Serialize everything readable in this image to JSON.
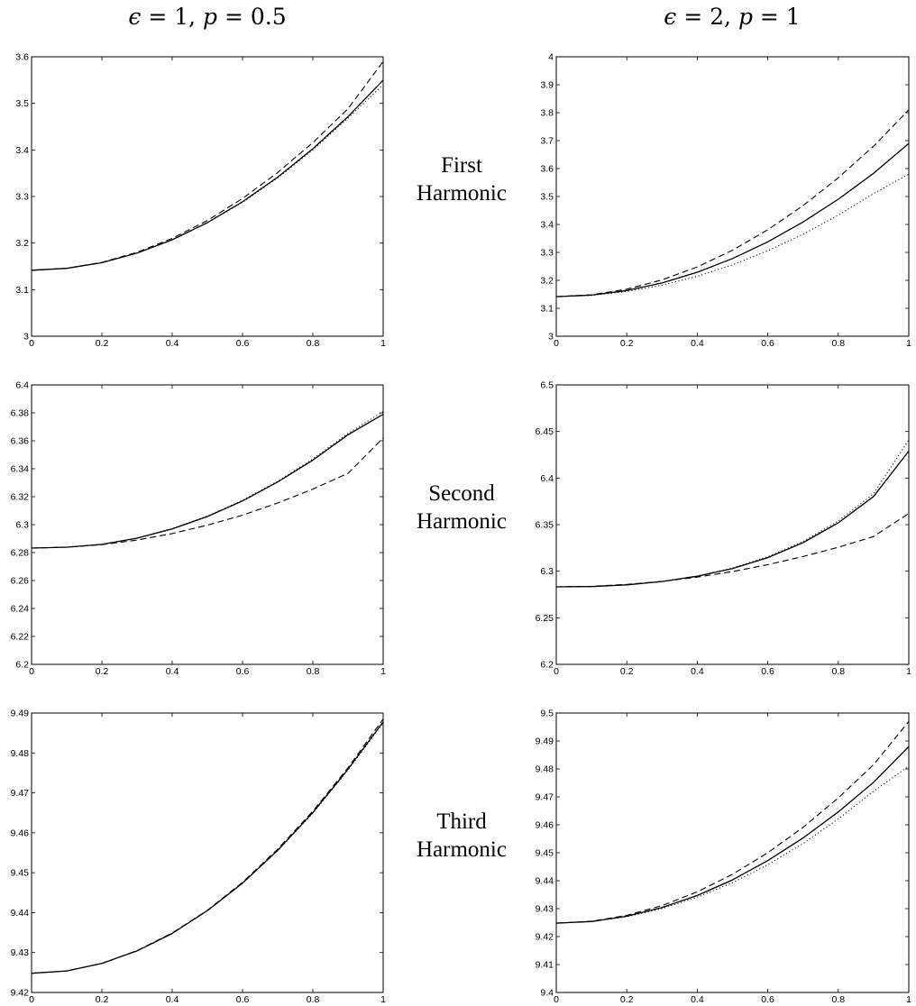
{
  "column_headers": [
    {
      "eps_var": "ϵ",
      "eps_eq": " = 1, ",
      "p_var": "p",
      "p_eq": " = 0.5"
    },
    {
      "eps_var": "ϵ",
      "eps_eq": " = 2, ",
      "p_var": "p",
      "p_eq": " = 1"
    }
  ],
  "row_labels": [
    {
      "line1": "First",
      "line2": "Harmonic"
    },
    {
      "line1": "Second",
      "line2": "Harmonic"
    },
    {
      "line1": "Third",
      "line2": "Harmonic"
    }
  ],
  "chart_data": [
    {
      "type": "line",
      "row": 0,
      "col": 0,
      "title": "",
      "xlabel": "",
      "ylabel": "",
      "xlim": [
        0,
        1
      ],
      "ylim": [
        3,
        3.6
      ],
      "xticks": [
        "0",
        "0.2",
        "0.4",
        "0.6",
        "0.8",
        "1"
      ],
      "yticks": [
        "3",
        "3.1",
        "3.2",
        "3.3",
        "3.4",
        "3.5",
        "3.6"
      ],
      "grid": false,
      "x": [
        0,
        0.1,
        0.2,
        0.3,
        0.4,
        0.5,
        0.6,
        0.7,
        0.8,
        0.9,
        1.0
      ],
      "series": [
        {
          "style": "solid",
          "values": [
            3.1416,
            3.1457,
            3.158,
            3.1785,
            3.2071,
            3.2438,
            3.2887,
            3.3416,
            3.4026,
            3.4715,
            3.55
          ]
        },
        {
          "style": "dashed",
          "values": [
            3.1416,
            3.1459,
            3.1587,
            3.1801,
            3.2101,
            3.2486,
            3.2957,
            3.3514,
            3.4157,
            3.4885,
            3.59
          ]
        },
        {
          "style": "dotted",
          "values": [
            3.1416,
            3.1457,
            3.1579,
            3.1783,
            3.2067,
            3.2432,
            3.2877,
            3.3399,
            3.4001,
            3.4681,
            3.54
          ]
        }
      ]
    },
    {
      "type": "line",
      "row": 0,
      "col": 1,
      "title": "",
      "xlabel": "",
      "ylabel": "",
      "xlim": [
        0,
        1
      ],
      "ylim": [
        3,
        4
      ],
      "xticks": [
        "0",
        "0.2",
        "0.4",
        "0.6",
        "0.8",
        "1"
      ],
      "yticks": [
        "3",
        "3.1",
        "3.2",
        "3.3",
        "3.4",
        "3.5",
        "3.6",
        "3.7",
        "3.8",
        "3.9",
        "4"
      ],
      "grid": false,
      "x": [
        0,
        0.1,
        0.2,
        0.3,
        0.4,
        0.5,
        0.6,
        0.7,
        0.8,
        0.9,
        1.0
      ],
      "series": [
        {
          "style": "solid",
          "values": [
            3.1416,
            3.1471,
            3.1635,
            3.1908,
            3.2289,
            3.278,
            3.3379,
            3.4087,
            3.4904,
            3.583,
            3.69
          ]
        },
        {
          "style": "dashed",
          "values": [
            3.1416,
            3.1483,
            3.1683,
            3.2016,
            3.2481,
            3.3079,
            3.381,
            3.4674,
            3.567,
            3.68,
            3.81
          ]
        },
        {
          "style": "dotted",
          "values": [
            3.1416,
            3.1462,
            3.1599,
            3.1827,
            3.2146,
            3.2556,
            3.3057,
            3.3649,
            3.4332,
            3.5106,
            3.58
          ]
        }
      ]
    },
    {
      "type": "line",
      "row": 1,
      "col": 0,
      "title": "",
      "xlabel": "",
      "ylabel": "",
      "xlim": [
        0,
        1
      ],
      "ylim": [
        6.2,
        6.4
      ],
      "xticks": [
        "0",
        "0.2",
        "0.4",
        "0.6",
        "0.8",
        "1"
      ],
      "yticks": [
        "6.2",
        "6.22",
        "6.24",
        "6.26",
        "6.28",
        "6.3",
        "6.32",
        "6.34",
        "6.36",
        "6.38",
        "6.4"
      ],
      "grid": false,
      "x": [
        0,
        0.1,
        0.2,
        0.3,
        0.4,
        0.5,
        0.6,
        0.7,
        0.8,
        0.9,
        1.0
      ],
      "series": [
        {
          "style": "solid",
          "values": [
            6.2832,
            6.2839,
            6.2859,
            6.2903,
            6.297,
            6.3058,
            6.317,
            6.3305,
            6.3462,
            6.3643,
            6.379
          ]
        },
        {
          "style": "dashed",
          "values": [
            6.2832,
            6.2838,
            6.2857,
            6.289,
            6.2936,
            6.2996,
            6.3068,
            6.3155,
            6.3254,
            6.3367,
            6.362
          ]
        },
        {
          "style": "dotted",
          "values": [
            6.2832,
            6.2839,
            6.2859,
            6.2904,
            6.2972,
            6.3061,
            6.3174,
            6.3311,
            6.347,
            6.3653,
            6.381
          ]
        }
      ]
    },
    {
      "type": "line",
      "row": 1,
      "col": 1,
      "title": "",
      "xlabel": "",
      "ylabel": "",
      "xlim": [
        0,
        1
      ],
      "ylim": [
        6.2,
        6.5
      ],
      "xticks": [
        "0",
        "0.2",
        "0.4",
        "0.6",
        "0.8",
        "1"
      ],
      "yticks": [
        "6.2",
        "6.25",
        "6.3",
        "6.35",
        "6.4",
        "6.45",
        "6.5"
      ],
      "grid": false,
      "x": [
        0,
        0.1,
        0.2,
        0.3,
        0.4,
        0.5,
        0.6,
        0.7,
        0.8,
        0.9,
        1.0
      ],
      "series": [
        {
          "style": "solid",
          "values": [
            6.2832,
            6.2835,
            6.2854,
            6.2889,
            6.2946,
            6.3029,
            6.3146,
            6.3306,
            6.3519,
            6.3802,
            6.429
          ]
        },
        {
          "style": "dashed",
          "values": [
            6.2832,
            6.2838,
            6.2858,
            6.289,
            6.2937,
            6.2996,
            6.307,
            6.3157,
            6.3257,
            6.3372,
            6.362
          ]
        },
        {
          "style": "dotted",
          "values": [
            6.2832,
            6.2835,
            6.2854,
            6.289,
            6.2949,
            6.3034,
            6.3155,
            6.3319,
            6.354,
            6.3832,
            6.441
          ]
        }
      ]
    },
    {
      "type": "line",
      "row": 2,
      "col": 0,
      "title": "",
      "xlabel": "",
      "ylabel": "",
      "xlim": [
        0,
        1
      ],
      "ylim": [
        9.42,
        9.49
      ],
      "xticks": [
        "0",
        "0.2",
        "0.4",
        "0.6",
        "0.8",
        "1"
      ],
      "yticks": [
        "9.42",
        "9.43",
        "9.44",
        "9.45",
        "9.46",
        "9.47",
        "9.48",
        "9.49"
      ],
      "grid": false,
      "x": [
        0,
        0.1,
        0.2,
        0.3,
        0.4,
        0.5,
        0.6,
        0.7,
        0.8,
        0.9,
        1.0
      ],
      "series": [
        {
          "style": "solid",
          "values": [
            9.4248,
            9.4254,
            9.4273,
            9.4304,
            9.4348,
            9.4405,
            9.4474,
            9.4556,
            9.4651,
            9.4759,
            9.4878
          ]
        },
        {
          "style": "dashed",
          "values": [
            9.4248,
            9.4254,
            9.4273,
            9.4305,
            9.4349,
            9.4406,
            9.4476,
            9.4559,
            9.4654,
            9.4763,
            9.4885
          ]
        },
        {
          "style": "dotted",
          "values": [
            9.4248,
            9.4254,
            9.4273,
            9.4304,
            9.4348,
            9.4405,
            9.4473,
            9.4555,
            9.4649,
            9.4757,
            9.4875
          ]
        }
      ]
    },
    {
      "type": "line",
      "row": 2,
      "col": 1,
      "title": "",
      "xlabel": "",
      "ylabel": "",
      "xlim": [
        0,
        1
      ],
      "ylim": [
        9.4,
        9.5
      ],
      "xticks": [
        "0",
        "0.2",
        "0.4",
        "0.6",
        "0.8",
        "1"
      ],
      "yticks": [
        "9.4",
        "9.41",
        "9.42",
        "9.43",
        "9.44",
        "9.45",
        "9.46",
        "9.47",
        "9.48",
        "9.49",
        "9.5"
      ],
      "grid": false,
      "x": [
        0,
        0.1,
        0.2,
        0.3,
        0.4,
        0.5,
        0.6,
        0.7,
        0.8,
        0.9,
        1.0
      ],
      "series": [
        {
          "style": "solid",
          "values": [
            9.4248,
            9.4254,
            9.4273,
            9.4304,
            9.4347,
            9.4403,
            9.4472,
            9.4553,
            9.4646,
            9.4752,
            9.488
          ]
        },
        {
          "style": "dashed",
          "values": [
            9.4248,
            9.4255,
            9.4276,
            9.4311,
            9.436,
            9.4423,
            9.45,
            9.4591,
            9.4696,
            9.4815,
            9.497
          ]
        },
        {
          "style": "dotted",
          "values": [
            9.4248,
            9.4254,
            9.4271,
            9.43,
            9.4341,
            9.4393,
            9.4457,
            9.4533,
            9.4621,
            9.472,
            9.481
          ]
        }
      ]
    }
  ]
}
